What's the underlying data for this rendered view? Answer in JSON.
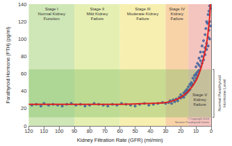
{
  "chart_data": {
    "type": "scatter",
    "x_label": "Kidney Filtration Rate (GFR) (ml/min)",
    "y_label": "Parathyroid Hormone (PTH) (pg/ml)",
    "xlim": [
      120,
      0
    ],
    "xticks": [
      120,
      110,
      100,
      90,
      80,
      70,
      60,
      50,
      40,
      30,
      20,
      10,
      0
    ],
    "ylim": [
      0,
      140
    ],
    "yticks": [
      0,
      20,
      40,
      60,
      80,
      100,
      120,
      140
    ],
    "grid": true,
    "series": [
      {
        "type": "scatter",
        "color": "#2f5fa8",
        "marker": "circle",
        "x": [
          118,
          115,
          112,
          110,
          107,
          104,
          101,
          98,
          95,
          92,
          89,
          86,
          83,
          80,
          77,
          74,
          71,
          68,
          65,
          62,
          59,
          56,
          53,
          50,
          47,
          44,
          41,
          38,
          35,
          32,
          30,
          28,
          27,
          26,
          25,
          24,
          23,
          22,
          21,
          20,
          20,
          19,
          18,
          18,
          17,
          17,
          16,
          16,
          15,
          15,
          14,
          14,
          13,
          13,
          12,
          12,
          11,
          11,
          10,
          10,
          10,
          9,
          9,
          9,
          8,
          8,
          8,
          7,
          7,
          7,
          6,
          6,
          6,
          5,
          5,
          5,
          4,
          4,
          4,
          3.5,
          3,
          3,
          3,
          2.5,
          2,
          2,
          2,
          1.5,
          1.5,
          1,
          1,
          1,
          0.5,
          0.5
        ],
        "values": [
          24,
          25,
          23,
          26,
          24,
          25,
          24,
          23,
          25,
          26,
          24,
          25,
          23,
          24,
          26,
          25,
          24,
          23,
          25,
          24,
          26,
          25,
          24,
          23,
          25,
          26,
          24,
          25,
          26,
          27,
          26,
          27,
          29,
          26,
          30,
          28,
          31,
          29,
          33,
          32,
          36,
          34,
          38,
          33,
          40,
          36,
          42,
          38,
          45,
          40,
          48,
          42,
          50,
          46,
          55,
          48,
          58,
          52,
          60,
          68,
          55,
          62,
          72,
          58,
          70,
          78,
          64,
          75,
          85,
          68,
          80,
          92,
          72,
          85,
          98,
          76,
          90,
          105,
          82,
          112,
          95,
          120,
          88,
          118,
          102,
          128,
          92,
          132,
          110,
          138,
          100,
          120,
          135,
          115
        ]
      },
      {
        "type": "line",
        "color": "#e02020",
        "line_style": "solid",
        "x": [
          120,
          100,
          80,
          60,
          40,
          30,
          25,
          20,
          15,
          10,
          7,
          5,
          3,
          2,
          1,
          0.5
        ],
        "values": [
          25,
          25,
          25,
          25,
          26,
          27,
          29,
          33,
          40,
          52,
          65,
          78,
          95,
          108,
          125,
          140
        ]
      }
    ],
    "annotations": [
      {
        "text": "Stage I\nNormal Kidney\nFunction",
        "x": [
          120,
          90
        ],
        "color": "#cfe6b6"
      },
      {
        "text": "Stage II\nMild Kidney\nFailure",
        "x": [
          90,
          60
        ],
        "color": "#e6efb2"
      },
      {
        "text": "Stage III\nModerate Kidney\nFailure",
        "x": [
          60,
          30
        ],
        "color": "#f7efb0"
      },
      {
        "text": "Stage IV\nKidney\nFailure",
        "x": [
          30,
          15
        ],
        "color": "#f8d3a8"
      },
      {
        "text": "Stage V\nKidney\nFailure",
        "x": [
          15,
          0
        ],
        "color": "#f4c4bf"
      },
      {
        "text": "Normal Parathyroid\nHormone Level",
        "y": [
          10,
          65
        ],
        "color": "#6fb65a"
      },
      {
        "text": "© Copyright 2014\nNorman Parathyroid Center"
      }
    ]
  }
}
